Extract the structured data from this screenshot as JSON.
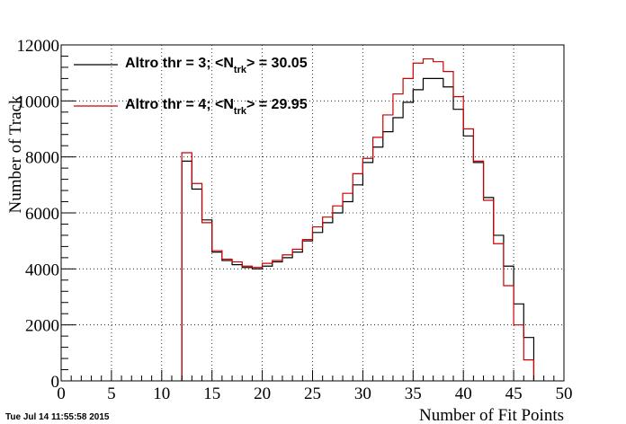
{
  "chart_data": {
    "type": "line",
    "xlabel": "Number of Fit Points",
    "ylabel": "Number of Track",
    "xlim": [
      0,
      50
    ],
    "ylim": [
      0,
      12000
    ],
    "x_ticks": [
      0,
      5,
      10,
      15,
      20,
      25,
      30,
      35,
      40,
      45,
      50
    ],
    "y_ticks": [
      0,
      2000,
      4000,
      6000,
      8000,
      10000,
      12000
    ],
    "grid": true,
    "legend_position": "top-left",
    "bin_edges": [
      12,
      13,
      14,
      15,
      16,
      17,
      18,
      19,
      20,
      21,
      22,
      23,
      24,
      25,
      26,
      27,
      28,
      29,
      30,
      31,
      32,
      33,
      34,
      35,
      36,
      37,
      38,
      39,
      40,
      41,
      42,
      43,
      44,
      45,
      46,
      47
    ],
    "series": [
      {
        "name_prefix": "Altro thr = 3; <N",
        "name_sub": "trk",
        "name_suffix": "> = 30.05",
        "color": "#000000",
        "values": [
          7850,
          6850,
          5750,
          4600,
          4300,
          4150,
          4050,
          4000,
          4100,
          4250,
          4400,
          4600,
          5000,
          5300,
          5650,
          6000,
          6400,
          7000,
          7800,
          8350,
          8900,
          9400,
          9950,
          10400,
          10800,
          10800,
          10500,
          9700,
          8750,
          7800,
          6550,
          5200,
          4100,
          2750,
          1550
        ]
      },
      {
        "name_prefix": "Altro thr = 4; <N",
        "name_sub": "trk",
        "name_suffix": "> = 29.95",
        "color": "#cc0000",
        "values": [
          8150,
          7050,
          5650,
          4650,
          4350,
          4250,
          4100,
          4050,
          4200,
          4300,
          4500,
          4700,
          5050,
          5500,
          5850,
          6250,
          6700,
          7400,
          7950,
          8700,
          9500,
          10250,
          10800,
          11350,
          11500,
          11400,
          11050,
          10150,
          9000,
          7850,
          6450,
          4900,
          3400,
          2000,
          750
        ]
      }
    ]
  },
  "footer": {
    "timestamp": "Tue Jul 14 11:55:58 2015"
  }
}
